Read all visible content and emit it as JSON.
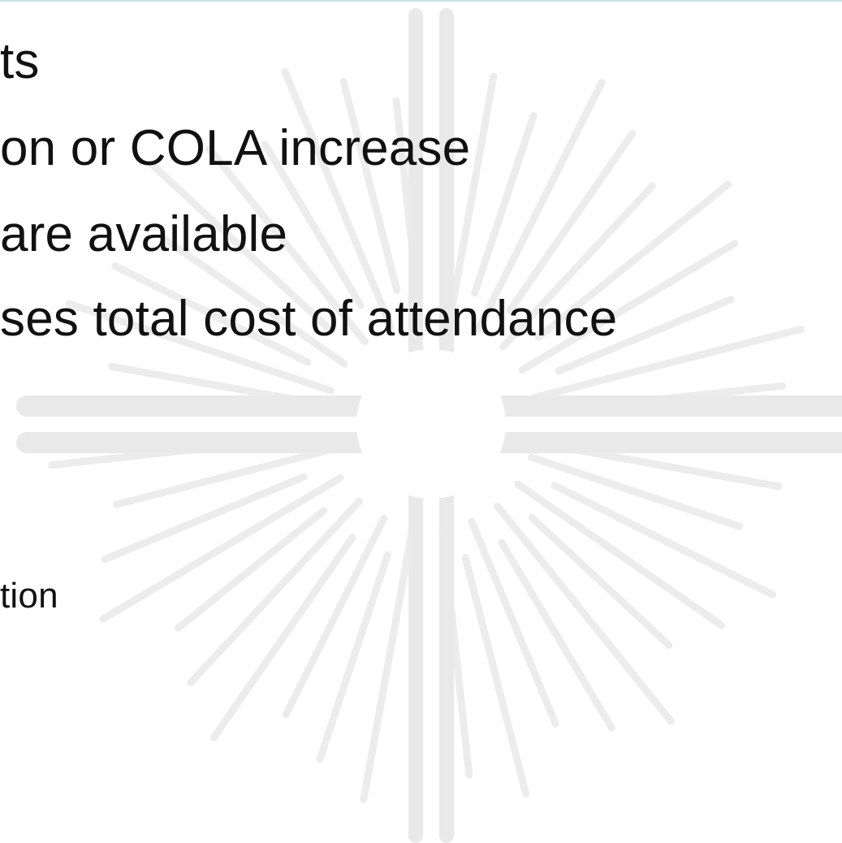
{
  "slide": {
    "bullet_lines": [
      "ts",
      "on or COLA increase",
      "are available",
      "ses total cost of attendance"
    ],
    "footer_fragment": "tion"
  },
  "colors": {
    "background": "#ffffff",
    "text": "#111111",
    "watermark": "#e9e9e9",
    "top_rule": "#bfe3ea"
  },
  "watermark": {
    "icon": "sunburst-cross-watermark"
  }
}
